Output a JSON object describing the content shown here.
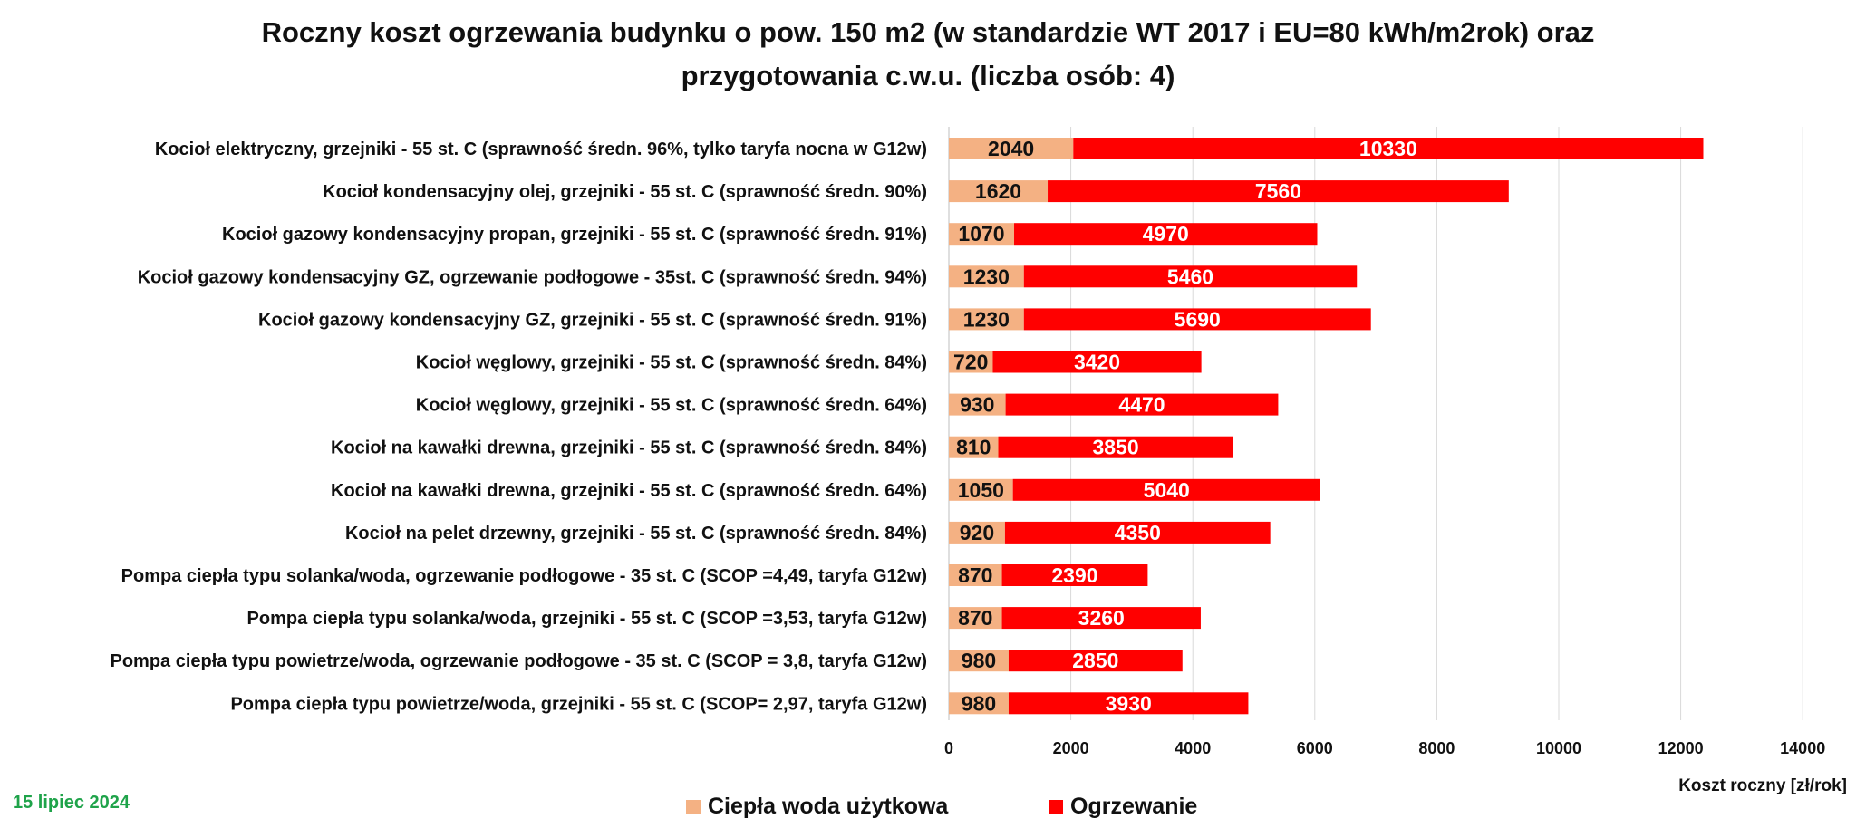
{
  "title_line1": "Roczny koszt ogrzewania budynku  o pow. 150 m2 (w standardzie WT 2017 i EU=80 kWh/m2rok) oraz",
  "title_line2": "przygotowania c.w.u. (liczba osób: 4)",
  "date": "15 lipiec 2024",
  "chart_data": {
    "type": "bar",
    "orientation": "horizontal",
    "stacked": true,
    "xlabel": "Koszt roczny [zł/rok]",
    "xlim": [
      0,
      14000
    ],
    "xticks": [
      0,
      2000,
      4000,
      6000,
      8000,
      10000,
      12000,
      14000
    ],
    "grid": true,
    "legend_position": "bottom",
    "categories": [
      "Kocioł  elektryczny,  grzejniki - 55 st. C  (sprawność średn. 96%, tylko taryfa nocna w G12w)",
      "Kocioł  kondensacyjny olej,  grzejniki - 55 st. C  (sprawność średn. 90%)",
      "Kocioł gazowy kondensacyjny propan, grzejniki - 55 st. C  (sprawność średn. 91%)",
      "Kocioł gazowy kondensacyjny GZ, ogrzewanie podłogowe - 35st. C   (sprawność średn. 94%)",
      "Kocioł gazowy kondensacyjny GZ, grzejniki - 55 st. C   (sprawność średn. 91%)",
      "Kocioł węglowy,  grzejniki - 55 st. C  (sprawność średn. 84%)",
      "Kocioł węglowy,  grzejniki - 55 st. C  (sprawność średn. 64%)",
      "Kocioł na kawałki drewna, grzejniki - 55 st. C (sprawność średn. 84%)",
      "Kocioł na kawałki drewna, grzejniki - 55 st. C  (sprawność średn. 64%)",
      "Kocioł na pelet drzewny, grzejniki - 55 st. C (sprawność średn. 84%)",
      "Pompa ciepła typu solanka/woda, ogrzewanie podłogowe - 35 st. C  (SCOP =4,49, taryfa G12w)",
      "Pompa ciepła typu solanka/woda, grzejniki - 55 st. C (SCOP =3,53, taryfa G12w)",
      "Pompa ciepła typu powietrze/woda, ogrzewanie podłogowe - 35 st. C (SCOP = 3,8, taryfa G12w)",
      "Pompa ciepła typu powietrze/woda, grzejniki - 55 st. C (SCOP= 2,97, taryfa G12w)"
    ],
    "series": [
      {
        "name": "Ciepła woda użytkowa",
        "color": "#f4b183",
        "values": [
          2040,
          1620,
          1070,
          1230,
          1230,
          720,
          930,
          810,
          1050,
          920,
          870,
          870,
          980,
          980
        ]
      },
      {
        "name": "Ogrzewanie",
        "color": "#ff0000",
        "values": [
          10330,
          7560,
          4970,
          5460,
          5690,
          3420,
          4470,
          3850,
          5040,
          4350,
          2390,
          3260,
          2850,
          3930
        ]
      }
    ]
  }
}
